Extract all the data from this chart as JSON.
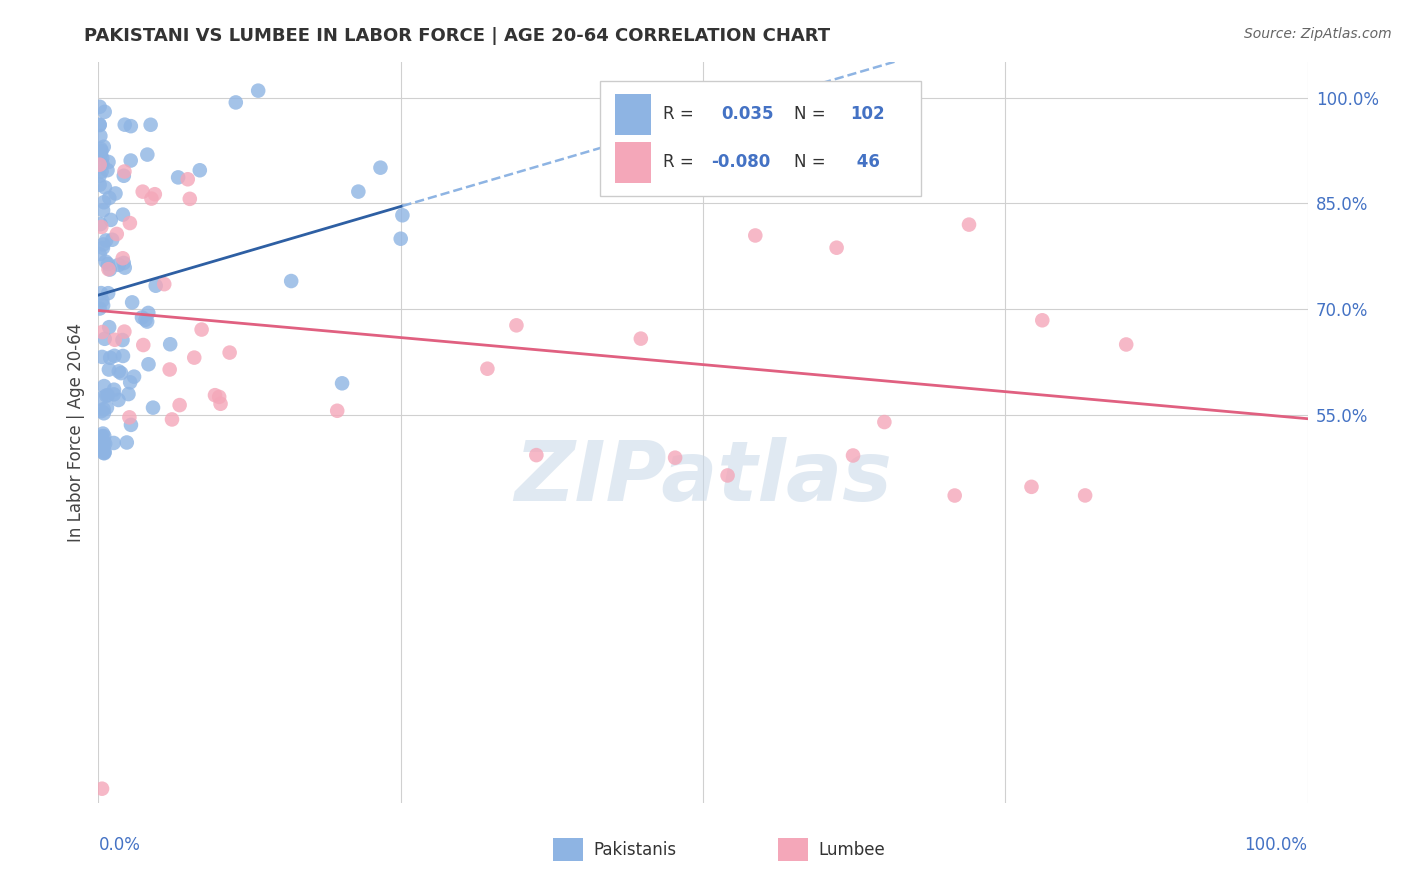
{
  "title": "PAKISTANI VS LUMBEE IN LABOR FORCE | AGE 20-64 CORRELATION CHART",
  "source": "Source: ZipAtlas.com",
  "ylabel": "In Labor Force | Age 20-64",
  "R_pakistani": 0.035,
  "N_pakistani": 102,
  "R_lumbee": -0.08,
  "N_lumbee": 46,
  "pakistani_color": "#8eb4e3",
  "lumbee_color": "#f4a7b9",
  "pakistani_line_color": "#2e5fa3",
  "lumbee_line_color": "#e06080",
  "background_color": "#ffffff",
  "grid_color": "#d0d0d0",
  "legend_label_pakistani": "Pakistanis",
  "legend_label_lumbee": "Lumbee"
}
